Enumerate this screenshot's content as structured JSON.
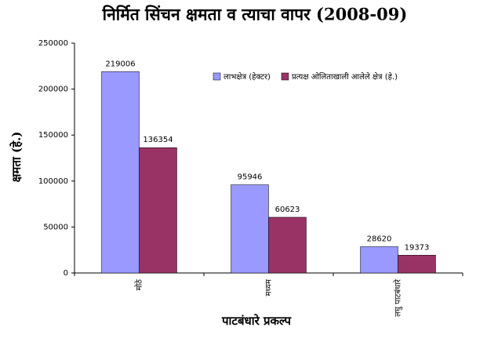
{
  "chart_data": {
    "type": "bar",
    "title": "निर्मित सिंचन क्षमता व त्याचा वापर (2008-09)",
    "y_label": "क्षमता (हे.)",
    "x_label": "पाटबंधारे प्रकल्प",
    "categories": [
      "मोठे",
      "मध्यम",
      "लघु पाटबंधारे"
    ],
    "series": [
      {
        "name": "लाभक्षेत्र (हेक्टर)",
        "color": "#9999ff",
        "values": [
          219006,
          95946,
          28620
        ]
      },
      {
        "name": "प्रत्यक्ष ओलिताखाली आलेले क्षेत्र (हे.)",
        "color": "#993366",
        "values": [
          136354,
          60623,
          19373
        ]
      }
    ],
    "ylim": [
      0,
      250000
    ],
    "yticks": [
      0,
      50000,
      100000,
      150000,
      200000,
      250000
    ],
    "legend": "top-right"
  }
}
